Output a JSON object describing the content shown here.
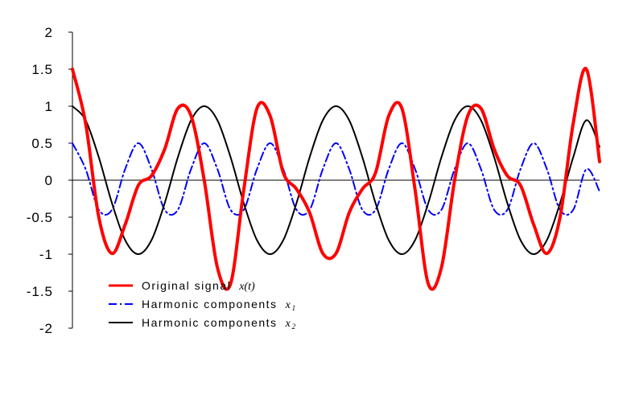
{
  "chart_data": {
    "type": "line",
    "title": "",
    "xlabel": "",
    "ylabel": "",
    "xlim": [
      0,
      2
    ],
    "ylim": [
      -2,
      2
    ],
    "y_ticks": [
      "2",
      "1.5",
      "1",
      "0.5",
      "0",
      "-0.5",
      "-1",
      "-1.5",
      "-2"
    ],
    "grid": false,
    "legend_position": "bottom-left",
    "series": [
      {
        "name": "Original signal",
        "math": "x(t)",
        "color": "#ff0000",
        "style": "solid-thick",
        "x": [
          0,
          0.05,
          0.1,
          0.15,
          0.2,
          0.25,
          0.3,
          0.35,
          0.4,
          0.45,
          0.5,
          0.55,
          0.6,
          0.65,
          0.7,
          0.75,
          0.8,
          0.85,
          0.9,
          0.95,
          1.0,
          1.05,
          1.1,
          1.15,
          1.2,
          1.25,
          1.3,
          1.35,
          1.4,
          1.45,
          1.5,
          1.55,
          1.6,
          1.65,
          1.7,
          1.75,
          1.8,
          1.85,
          1.9,
          1.95,
          2.0
        ],
        "values": [
          1.5,
          0.77,
          -0.5,
          -0.99,
          -0.6,
          -0.07,
          0.06,
          0.42,
          0.97,
          0.87,
          0.0,
          -1.18,
          -1.4,
          -0.13,
          0.97,
          0.87,
          0.1,
          -0.12,
          -0.44,
          -0.99,
          -0.99,
          -0.44,
          -0.12,
          0.1,
          0.87,
          0.97,
          -0.13,
          -1.4,
          -1.18,
          0.0,
          0.87,
          0.97,
          0.42,
          0.06,
          -0.07,
          -0.6,
          -0.99,
          -0.5,
          0.77,
          1.5,
          0.25
        ]
      },
      {
        "name": "Harmonic components",
        "math": "x",
        "subscript": "1",
        "color": "#0000ff",
        "style": "dash-dot",
        "x": [
          0,
          0.05,
          0.1,
          0.15,
          0.2,
          0.25,
          0.3,
          0.35,
          0.4,
          0.45,
          0.5,
          0.55,
          0.6,
          0.65,
          0.7,
          0.75,
          0.8,
          0.85,
          0.9,
          0.95,
          1.0,
          1.05,
          1.1,
          1.15,
          1.2,
          1.25,
          1.3,
          1.35,
          1.4,
          1.45,
          1.5,
          1.55,
          1.6,
          1.65,
          1.7,
          1.75,
          1.8,
          1.85,
          1.9,
          1.95,
          2.0
        ],
        "values": [
          0.5,
          0.15,
          -0.4,
          -0.4,
          0.15,
          0.5,
          0.15,
          -0.4,
          -0.4,
          0.15,
          0.5,
          0.15,
          -0.4,
          -0.4,
          0.15,
          0.5,
          0.15,
          -0.4,
          -0.4,
          0.15,
          0.5,
          0.15,
          -0.4,
          -0.4,
          0.15,
          0.5,
          0.15,
          -0.4,
          -0.4,
          0.15,
          0.5,
          0.15,
          -0.4,
          -0.4,
          0.15,
          0.5,
          0.15,
          -0.4,
          -0.4,
          0.15,
          -0.15
        ]
      },
      {
        "name": "Harmonic components",
        "math": "x",
        "subscript": "2",
        "color": "#000000",
        "style": "solid",
        "x": [
          0,
          0.05,
          0.1,
          0.15,
          0.2,
          0.25,
          0.3,
          0.35,
          0.4,
          0.45,
          0.5,
          0.55,
          0.6,
          0.65,
          0.7,
          0.75,
          0.8,
          0.85,
          0.9,
          0.95,
          1.0,
          1.05,
          1.1,
          1.15,
          1.2,
          1.25,
          1.3,
          1.35,
          1.4,
          1.45,
          1.5,
          1.55,
          1.6,
          1.65,
          1.7,
          1.75,
          1.8,
          1.85,
          1.9,
          1.95,
          2.0
        ],
        "values": [
          1.0,
          0.81,
          0.31,
          -0.31,
          -0.81,
          -1.0,
          -0.81,
          -0.31,
          0.31,
          0.81,
          1.0,
          0.81,
          0.31,
          -0.31,
          -0.81,
          -1.0,
          -0.81,
          -0.31,
          0.31,
          0.81,
          1.0,
          0.81,
          0.31,
          -0.31,
          -0.81,
          -1.0,
          -0.81,
          -0.31,
          0.31,
          0.81,
          1.0,
          0.81,
          0.31,
          -0.31,
          -0.81,
          -1.0,
          -0.81,
          -0.31,
          0.31,
          0.81,
          0.45
        ]
      }
    ]
  }
}
